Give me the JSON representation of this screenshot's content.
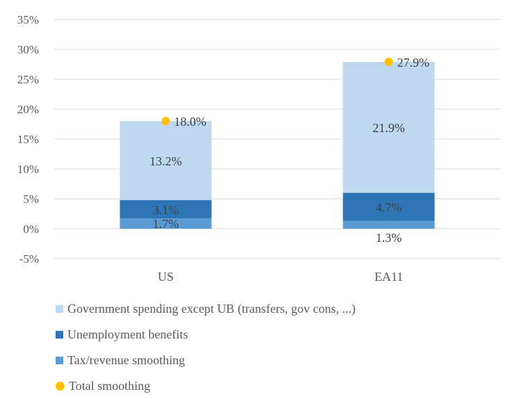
{
  "chart_data": {
    "type": "bar",
    "stacked": true,
    "categories": [
      "US",
      "EA11"
    ],
    "series": [
      {
        "name": "Tax/revenue smoothing",
        "values": [
          1.7,
          1.3
        ],
        "labels": [
          "1.7%",
          "1.3%"
        ],
        "color": "#5b9bd5"
      },
      {
        "name": "Unemployment benefits",
        "values": [
          3.1,
          4.7
        ],
        "labels": [
          "3.1%",
          "4.7%"
        ],
        "color": "#2e75b6"
      },
      {
        "name": "Government spending except UB (transfers, gov cons, ...)",
        "values": [
          13.2,
          21.9
        ],
        "labels": [
          "13.2%",
          "21.9%"
        ],
        "color": "#bdd7ee"
      }
    ],
    "total": {
      "name": "Total smoothing",
      "values": [
        18.0,
        27.9
      ],
      "labels": [
        "18.0%",
        "27.9%"
      ],
      "color": "#ffc000"
    },
    "yticks": [
      "-5%",
      "0%",
      "5%",
      "10%",
      "15%",
      "20%",
      "25%",
      "30%",
      "35%"
    ],
    "ytick_values": [
      -5,
      0,
      5,
      10,
      15,
      20,
      25,
      30,
      35
    ],
    "ylim": [
      -5,
      35
    ],
    "grid": true,
    "legend_position": "bottom",
    "legend_order": [
      "Government spending except UB (transfers, gov cons, ...)",
      "Unemployment benefits",
      "Tax/revenue smoothing",
      "Total smoothing"
    ],
    "title": "",
    "xlabel": "",
    "ylabel": ""
  }
}
